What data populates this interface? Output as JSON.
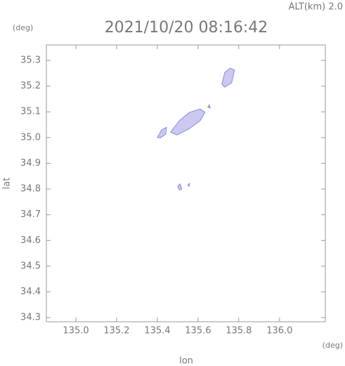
{
  "chart_data": {
    "type": "echo-map",
    "title": "2021/10/20 08:16:42",
    "altitude_label": "ALT(km) 2.0",
    "y_unit": "(deg)",
    "x_unit": "(deg)",
    "xlabel": "lon",
    "ylabel": "lat",
    "xlim": [
      134.855,
      136.225
    ],
    "ylim": [
      34.284,
      35.36
    ],
    "xticks": [
      {
        "value": 135.0,
        "label": "135.0"
      },
      135.2,
      135.4,
      135.6,
      135.8,
      {
        "value": 136.0,
        "label": "136.0"
      }
    ],
    "yticks": [
      {
        "value": 34.3,
        "label": "34.3"
      },
      34.4,
      34.5,
      34.6,
      34.7,
      34.8,
      34.9,
      {
        "value": 35.0,
        "label": "35.0"
      },
      35.1,
      35.2,
      35.3
    ],
    "color": "#c9c9f2",
    "edge_color": "#8c8cd0",
    "echoes": [
      {
        "lon": [
          135.465,
          135.507,
          135.558,
          135.61,
          135.634,
          135.61,
          135.552,
          135.496
        ],
        "lat": [
          35.021,
          35.065,
          35.098,
          35.111,
          35.098,
          35.065,
          35.032,
          35.01
        ]
      },
      {
        "lon": [
          135.4,
          135.421,
          135.445,
          135.441,
          135.414
        ],
        "lat": [
          35.0,
          35.03,
          35.04,
          35.013,
          34.999
        ]
      },
      {
        "lon": [
          135.717,
          135.731,
          135.758,
          135.779,
          135.765,
          135.731
        ],
        "lat": [
          35.207,
          35.253,
          35.27,
          35.262,
          35.213,
          35.196
        ]
      },
      {
        "lon": [
          135.648,
          135.655,
          135.66
        ],
        "lat": [
          35.118,
          35.128,
          35.115
        ]
      },
      {
        "lon": [
          135.5,
          135.512,
          135.52,
          135.508
        ],
        "lat": [
          34.81,
          34.82,
          34.8,
          34.796
        ]
      },
      {
        "lon": [
          135.55,
          135.558,
          135.556
        ],
        "lat": [
          34.815,
          34.822,
          34.81
        ]
      }
    ]
  }
}
